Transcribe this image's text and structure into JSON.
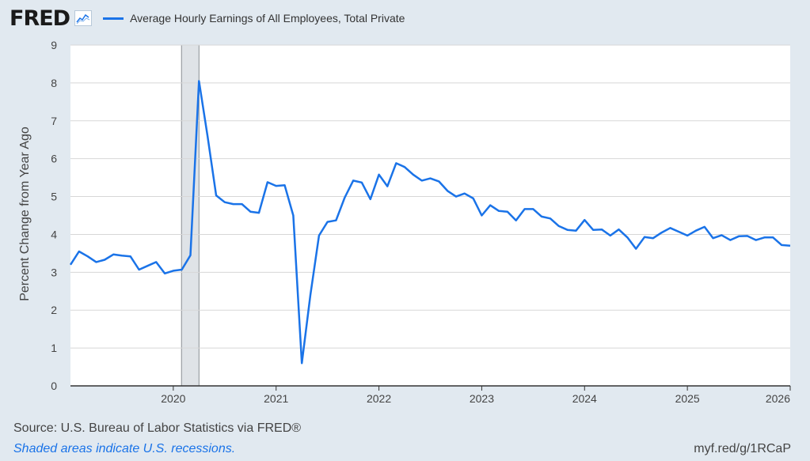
{
  "header": {
    "logo": "FRED",
    "logo_icon": "line-chart-icon",
    "series_label": "Average Hourly Earnings of All Employees, Total Private",
    "series_color": "#1a73e8"
  },
  "footer": {
    "source": "Source: U.S. Bureau of Labor Statistics via FRED®",
    "note": "Shaded areas indicate U.S. recessions.",
    "shortlink": "myf.red/g/1RCaP"
  },
  "chart_data": {
    "type": "line",
    "title": "",
    "xlabel": "",
    "ylabel": "Percent Change from Year Ago",
    "xlim": [
      2019.0,
      2026.0
    ],
    "ylim": [
      0,
      9
    ],
    "yticks": [
      "0",
      "1",
      "2",
      "3",
      "4",
      "5",
      "6",
      "7",
      "8",
      "9"
    ],
    "xticks": [
      "2020",
      "2021",
      "2022",
      "2023",
      "2024",
      "2025",
      "2026"
    ],
    "grid": true,
    "recessions": [
      [
        2020.08,
        2020.25
      ]
    ],
    "series": [
      {
        "name": "Average Hourly Earnings of All Employees, Total Private",
        "color": "#1a73e8",
        "x": [
          2019.0,
          2019.083,
          2019.167,
          2019.25,
          2019.333,
          2019.417,
          2019.5,
          2019.583,
          2019.667,
          2019.75,
          2019.833,
          2019.917,
          2020.0,
          2020.083,
          2020.167,
          2020.25,
          2020.333,
          2020.417,
          2020.5,
          2020.583,
          2020.667,
          2020.75,
          2020.833,
          2020.917,
          2021.0,
          2021.083,
          2021.167,
          2021.25,
          2021.333,
          2021.417,
          2021.5,
          2021.583,
          2021.667,
          2021.75,
          2021.833,
          2021.917,
          2022.0,
          2022.083,
          2022.167,
          2022.25,
          2022.333,
          2022.417,
          2022.5,
          2022.583,
          2022.667,
          2022.75,
          2022.833,
          2022.917,
          2023.0,
          2023.083,
          2023.167,
          2023.25,
          2023.333,
          2023.417,
          2023.5,
          2023.583,
          2023.667,
          2023.75,
          2023.833,
          2023.917,
          2024.0,
          2024.083,
          2024.167,
          2024.25,
          2024.333,
          2024.417,
          2024.5,
          2024.583,
          2024.667,
          2024.75,
          2024.833,
          2024.917,
          2025.0,
          2025.083,
          2025.167,
          2025.25,
          2025.333,
          2025.417,
          2025.5,
          2025.583,
          2025.667,
          2025.75,
          2025.833,
          2025.917,
          2026.0
        ],
        "values": [
          3.2,
          3.55,
          3.42,
          3.27,
          3.33,
          3.47,
          3.44,
          3.42,
          3.07,
          3.17,
          3.27,
          2.97,
          3.04,
          3.07,
          3.45,
          8.05,
          6.6,
          5.03,
          4.85,
          4.8,
          4.8,
          4.6,
          4.57,
          5.38,
          5.28,
          5.3,
          4.5,
          0.6,
          2.4,
          3.97,
          4.33,
          4.37,
          4.97,
          5.42,
          5.37,
          4.93,
          5.58,
          5.27,
          5.88,
          5.78,
          5.58,
          5.42,
          5.48,
          5.4,
          5.15,
          5.0,
          5.08,
          4.95,
          4.5,
          4.77,
          4.62,
          4.6,
          4.37,
          4.67,
          4.67,
          4.47,
          4.42,
          4.22,
          4.12,
          4.1,
          4.38,
          4.12,
          4.13,
          3.97,
          4.13,
          3.92,
          3.62,
          3.93,
          3.9,
          4.05,
          4.17,
          4.07,
          3.97,
          4.1,
          4.2,
          3.9,
          3.98,
          3.85,
          3.95,
          3.96,
          3.85,
          3.92,
          3.92,
          3.72,
          3.7
        ]
      }
    ]
  }
}
